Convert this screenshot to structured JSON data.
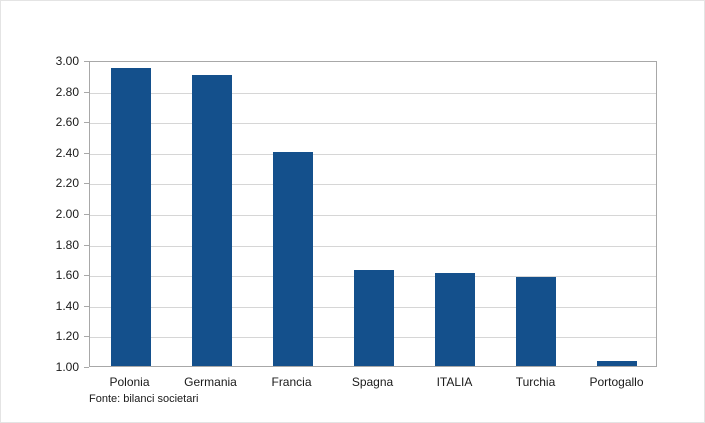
{
  "chart_data": {
    "type": "bar",
    "categories": [
      "Polonia",
      "Germania",
      "Francia",
      "Spagna",
      "ITALIA",
      "Turchia",
      "Portogallo"
    ],
    "values": [
      2.95,
      2.9,
      2.4,
      1.63,
      1.61,
      1.58,
      1.03
    ],
    "title": "",
    "xlabel": "",
    "ylabel": "",
    "ylim": [
      1.0,
      3.0
    ],
    "ytick_step": 0.2,
    "ytick_format_decimals": 2,
    "grid": true,
    "legend": false,
    "source_note": "Fonte: bilanci societari",
    "bar_color": "#14508c",
    "gridline_color": "#d6d6d6",
    "axis_color": "#a8a8a8",
    "text_color": "#1a1a1a"
  }
}
